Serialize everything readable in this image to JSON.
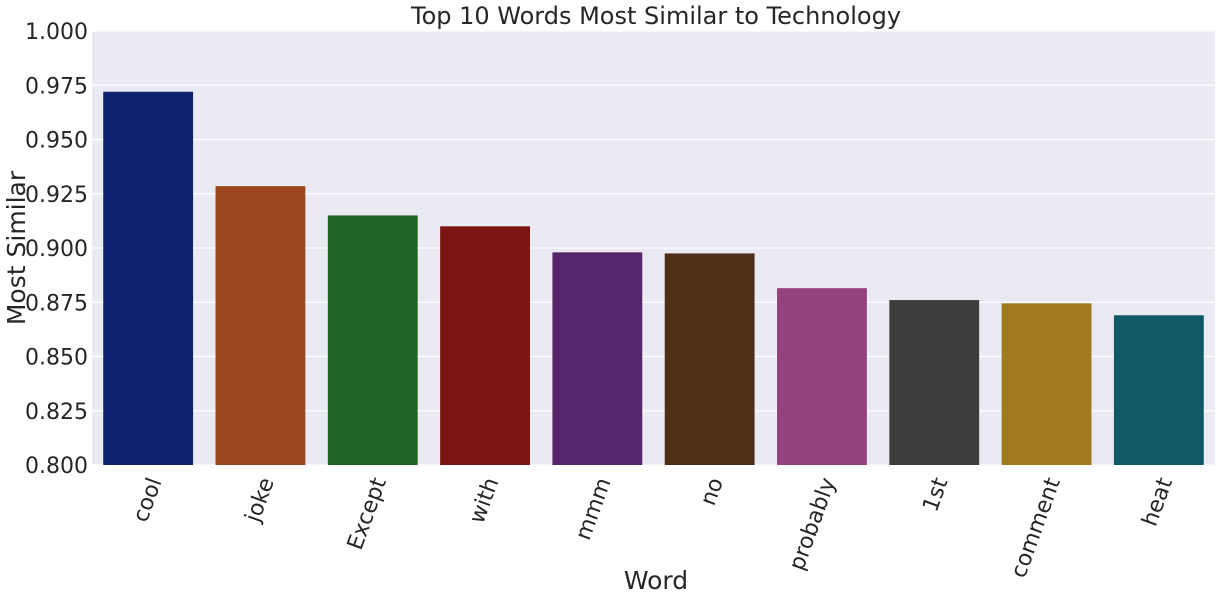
{
  "chart_data": {
    "type": "bar",
    "title": "Top 10 Words Most Similar to Technology",
    "xlabel": "Word",
    "ylabel": "Most Similar",
    "categories": [
      "cool",
      "joke",
      "Except",
      "with",
      "mmm",
      "no",
      "probably",
      "1st",
      "comment",
      "heat"
    ],
    "values": [
      0.972,
      0.9285,
      0.915,
      0.91,
      0.898,
      0.8975,
      0.8815,
      0.876,
      0.8745,
      0.869
    ],
    "colors": [
      "#0e2270",
      "#9a4720",
      "#1e6524",
      "#7a1512",
      "#55276a",
      "#4f2e18",
      "#93427e",
      "#3c3c3c",
      "#a07a20",
      "#0f5966"
    ],
    "ylim": [
      0.8,
      1.0
    ],
    "yticks": [
      "0.800",
      "0.825",
      "0.850",
      "0.875",
      "0.900",
      "0.925",
      "0.950",
      "0.975",
      "1.000"
    ],
    "ytick_values": [
      0.8,
      0.825,
      0.85,
      0.875,
      0.9,
      0.925,
      0.95,
      0.975,
      1.0
    ],
    "xtick_rotation": 70,
    "grid": true,
    "plot_background": "#eaeaf2",
    "grid_color": "#ffffff"
  }
}
